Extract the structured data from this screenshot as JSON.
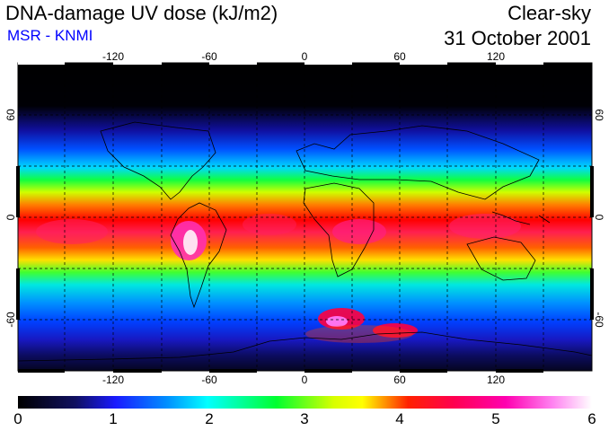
{
  "header": {
    "title": "DNA-damage UV dose (kJ/m2)",
    "subtitle": "MSR - KNMI",
    "condition": "Clear-sky",
    "date": "31 October 2001"
  },
  "map": {
    "lon_ticks": [
      "-120",
      "-60",
      "0",
      "60",
      "120"
    ],
    "lat_ticks_left": [
      "60",
      "0",
      "-60"
    ],
    "lat_ticks_right": [
      "60",
      "0",
      "-60"
    ]
  },
  "colorbar": {
    "ticks": [
      "0",
      "1",
      "2",
      "3",
      "4",
      "5",
      "6"
    ],
    "min": 0,
    "max": 6,
    "colors": [
      "#000000",
      "#1a1a9e",
      "#0050ff",
      "#00e0ff",
      "#00ff40",
      "#d8ff00",
      "#ffff00",
      "#ff3000",
      "#ff0060",
      "#ff00c0",
      "#ffffff"
    ]
  }
}
